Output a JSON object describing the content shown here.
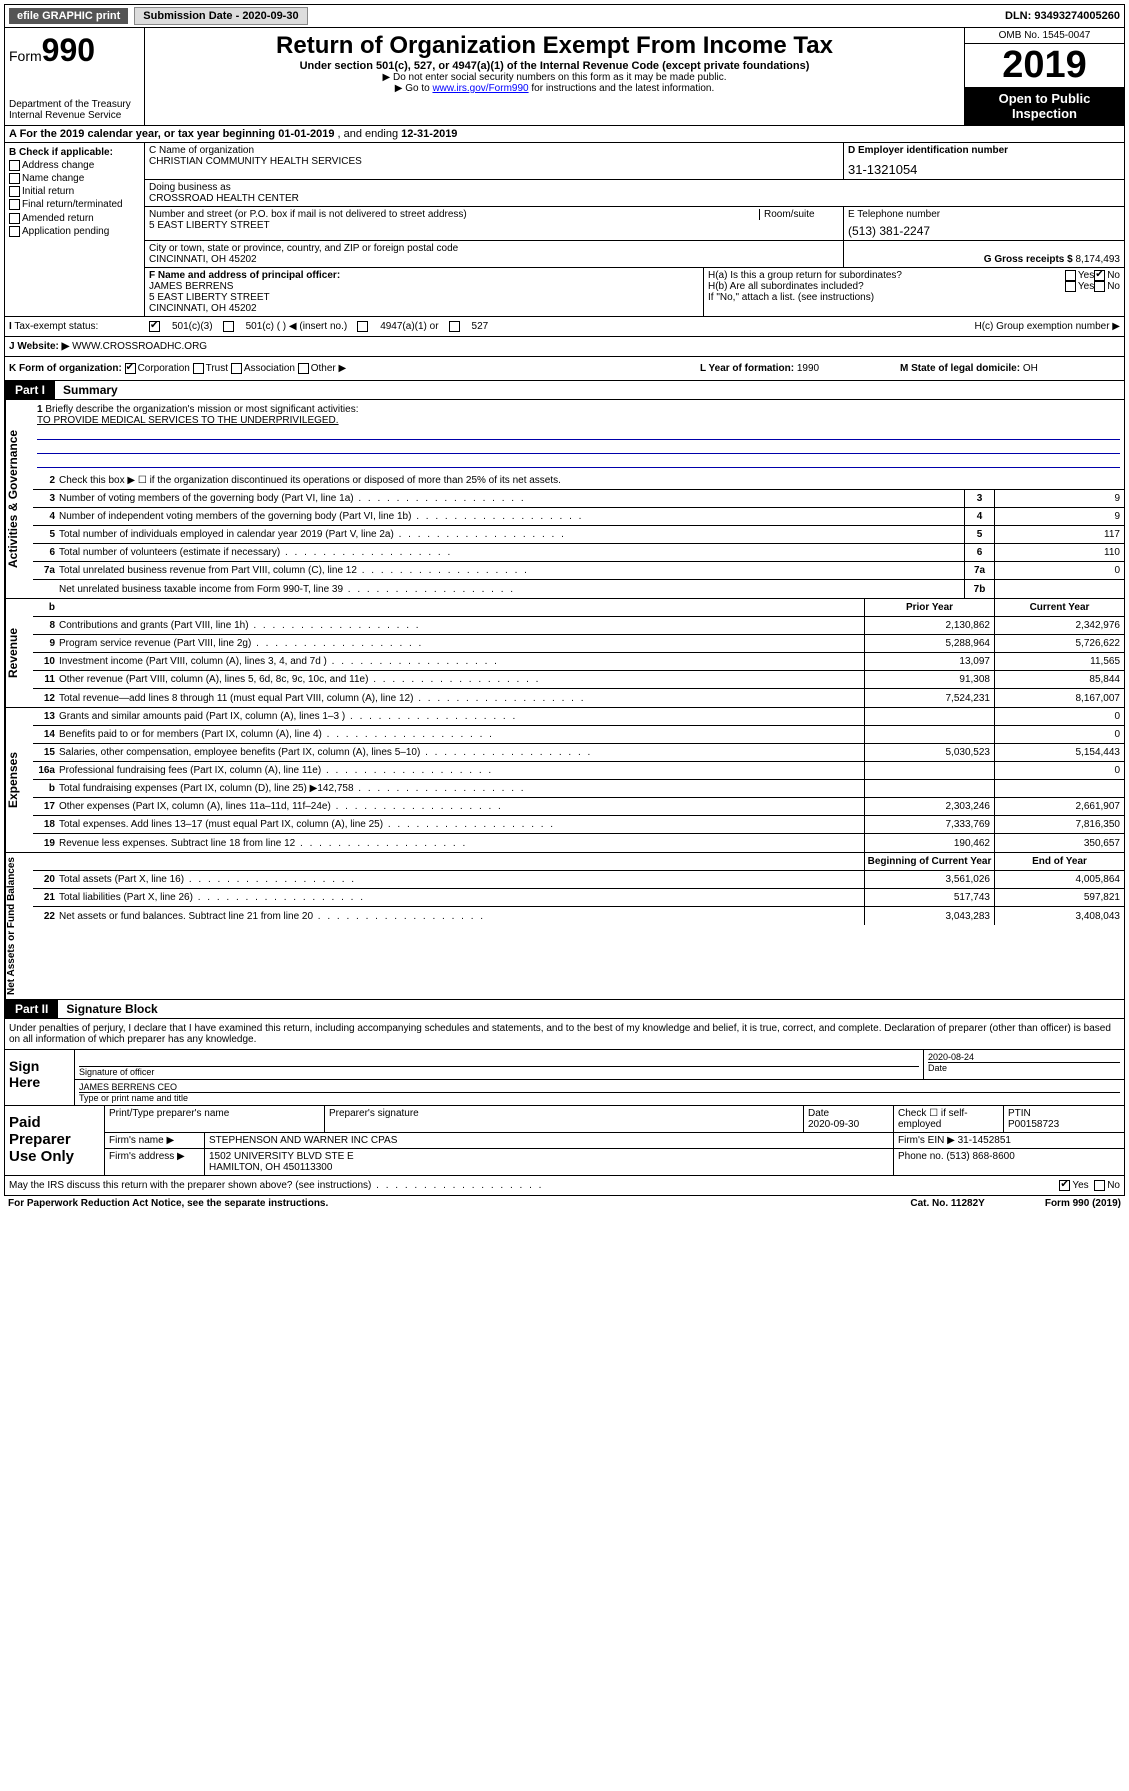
{
  "topbar": {
    "efile": "efile GRAPHIC print",
    "submission": "Submission Date - 2020-09-30",
    "dln": "DLN: 93493274005260"
  },
  "header": {
    "form_prefix": "Form",
    "form_number": "990",
    "dept": "Department of the Treasury\nInternal Revenue Service",
    "title": "Return of Organization Exempt From Income Tax",
    "subtitle": "Under section 501(c), 527, or 4947(a)(1) of the Internal Revenue Code (except private foundations)",
    "note1": "▶ Do not enter social security numbers on this form as it may be made public.",
    "note2_pre": "▶ Go to ",
    "note2_link": "www.irs.gov/Form990",
    "note2_post": " for instructions and the latest information.",
    "omb": "OMB No. 1545-0047",
    "year": "2019",
    "open": "Open to Public Inspection"
  },
  "period": {
    "text_pre": "A For the 2019 calendar year, or tax year beginning ",
    "begin": "01-01-2019",
    "mid": " , and ending ",
    "end": "12-31-2019"
  },
  "boxB": {
    "label": "B Check if applicable:",
    "items": [
      "Address change",
      "Name change",
      "Initial return",
      "Final return/terminated",
      "Amended return",
      "Application pending"
    ]
  },
  "boxC": {
    "name_label": "C Name of organization",
    "name": "CHRISTIAN COMMUNITY HEALTH SERVICES",
    "dba_label": "Doing business as",
    "dba": "CROSSROAD HEALTH CENTER",
    "addr_label": "Number and street (or P.O. box if mail is not delivered to street address)",
    "room_label": "Room/suite",
    "addr": "5 EAST LIBERTY STREET",
    "city_label": "City or town, state or province, country, and ZIP or foreign postal code",
    "city": "CINCINNATI, OH  45202"
  },
  "boxD": {
    "label": "D Employer identification number",
    "ein": "31-1321054"
  },
  "boxE": {
    "label": "E Telephone number",
    "phone": "(513) 381-2247"
  },
  "boxG": {
    "label": "G Gross receipts $ ",
    "amount": "8,174,493"
  },
  "boxF": {
    "label": "F Name and address of principal officer:",
    "name": "JAMES BERRENS",
    "addr": "5 EAST LIBERTY STREET",
    "city": "CINCINNATI, OH  45202"
  },
  "boxH": {
    "ha": "H(a)  Is this a group return for subordinates?",
    "hb": "H(b)  Are all subordinates included?",
    "hb_note": "If \"No,\" attach a list. (see instructions)",
    "hc": "H(c)  Group exemption number ▶",
    "yes": "Yes",
    "no": "No"
  },
  "boxI": {
    "label": "Tax-exempt status:",
    "opt1": "501(c)(3)",
    "opt2": "501(c) (  ) ◀ (insert no.)",
    "opt3": "4947(a)(1) or",
    "opt4": "527"
  },
  "boxJ": {
    "label": "Website: ▶",
    "url": "WWW.CROSSROADHC.ORG"
  },
  "boxK": {
    "label": "K Form of organization:",
    "corp": "Corporation",
    "trust": "Trust",
    "assoc": "Association",
    "other": "Other ▶"
  },
  "boxL": {
    "label": "L Year of formation: ",
    "val": "1990"
  },
  "boxM": {
    "label": "M State of legal domicile: ",
    "val": "OH"
  },
  "part1": {
    "header": "Part I",
    "title": "Summary"
  },
  "summary": {
    "q1": "Briefly describe the organization's mission or most significant activities:",
    "mission": "TO PROVIDE MEDICAL SERVICES TO THE UNDERPRIVILEGED.",
    "q2": "Check this box ▶ ☐  if the organization discontinued its operations or disposed of more than 25% of its net assets.",
    "rows_gov": [
      {
        "n": "3",
        "d": "Number of voting members of the governing body (Part VI, line 1a)",
        "b": "3",
        "v": "9"
      },
      {
        "n": "4",
        "d": "Number of independent voting members of the governing body (Part VI, line 1b)",
        "b": "4",
        "v": "9"
      },
      {
        "n": "5",
        "d": "Total number of individuals employed in calendar year 2019 (Part V, line 2a)",
        "b": "5",
        "v": "117"
      },
      {
        "n": "6",
        "d": "Total number of volunteers (estimate if necessary)",
        "b": "6",
        "v": "110"
      },
      {
        "n": "7a",
        "d": "Total unrelated business revenue from Part VIII, column (C), line 12",
        "b": "7a",
        "v": "0"
      },
      {
        "n": "",
        "d": "Net unrelated business taxable income from Form 990-T, line 39",
        "b": "7b",
        "v": ""
      }
    ],
    "col_prior": "Prior Year",
    "col_current": "Current Year",
    "rows_rev": [
      {
        "n": "8",
        "d": "Contributions and grants (Part VIII, line 1h)",
        "p": "2,130,862",
        "c": "2,342,976"
      },
      {
        "n": "9",
        "d": "Program service revenue (Part VIII, line 2g)",
        "p": "5,288,964",
        "c": "5,726,622"
      },
      {
        "n": "10",
        "d": "Investment income (Part VIII, column (A), lines 3, 4, and 7d )",
        "p": "13,097",
        "c": "11,565"
      },
      {
        "n": "11",
        "d": "Other revenue (Part VIII, column (A), lines 5, 6d, 8c, 9c, 10c, and 11e)",
        "p": "91,308",
        "c": "85,844"
      },
      {
        "n": "12",
        "d": "Total revenue—add lines 8 through 11 (must equal Part VIII, column (A), line 12)",
        "p": "7,524,231",
        "c": "8,167,007"
      }
    ],
    "rows_exp": [
      {
        "n": "13",
        "d": "Grants and similar amounts paid (Part IX, column (A), lines 1–3 )",
        "p": "",
        "c": "0"
      },
      {
        "n": "14",
        "d": "Benefits paid to or for members (Part IX, column (A), line 4)",
        "p": "",
        "c": "0"
      },
      {
        "n": "15",
        "d": "Salaries, other compensation, employee benefits (Part IX, column (A), lines 5–10)",
        "p": "5,030,523",
        "c": "5,154,443"
      },
      {
        "n": "16a",
        "d": "Professional fundraising fees (Part IX, column (A), line 11e)",
        "p": "",
        "c": "0"
      },
      {
        "n": "b",
        "d": "Total fundraising expenses (Part IX, column (D), line 25) ▶142,758",
        "p": "",
        "c": ""
      },
      {
        "n": "17",
        "d": "Other expenses (Part IX, column (A), lines 11a–11d, 11f–24e)",
        "p": "2,303,246",
        "c": "2,661,907"
      },
      {
        "n": "18",
        "d": "Total expenses. Add lines 13–17 (must equal Part IX, column (A), line 25)",
        "p": "7,333,769",
        "c": "7,816,350"
      },
      {
        "n": "19",
        "d": "Revenue less expenses. Subtract line 18 from line 12",
        "p": "190,462",
        "c": "350,657"
      }
    ],
    "col_begin": "Beginning of Current Year",
    "col_end": "End of Year",
    "rows_net": [
      {
        "n": "20",
        "d": "Total assets (Part X, line 16)",
        "p": "3,561,026",
        "c": "4,005,864"
      },
      {
        "n": "21",
        "d": "Total liabilities (Part X, line 26)",
        "p": "517,743",
        "c": "597,821"
      },
      {
        "n": "22",
        "d": "Net assets or fund balances. Subtract line 21 from line 20",
        "p": "3,043,283",
        "c": "3,408,043"
      }
    ],
    "side_gov": "Activities & Governance",
    "side_rev": "Revenue",
    "side_exp": "Expenses",
    "side_net": "Net Assets or Fund Balances"
  },
  "part2": {
    "header": "Part II",
    "title": "Signature Block"
  },
  "sig": {
    "text": "Under penalties of perjury, I declare that I have examined this return, including accompanying schedules and statements, and to the best of my knowledge and belief, it is true, correct, and complete. Declaration of preparer (other than officer) is based on all information of which preparer has any knowledge.",
    "sign_here": "Sign Here",
    "sig_officer": "Signature of officer",
    "date": "2020-08-24",
    "date_label": "Date",
    "officer": "JAMES BERRENS CEO",
    "type_label": "Type or print name and title"
  },
  "paid": {
    "label": "Paid Preparer Use Only",
    "r1": {
      "c1": "Print/Type preparer's name",
      "c2": "Preparer's signature",
      "c3l": "Date",
      "c3": "2020-09-30",
      "c4": "Check ☐ if self-employed",
      "c5l": "PTIN",
      "c5": "P00158723"
    },
    "r2": {
      "c1": "Firm's name    ▶",
      "c2": "STEPHENSON AND WARNER INC CPAS",
      "c3": "Firm's EIN ▶ 31-1452851"
    },
    "r3": {
      "c1": "Firm's address ▶",
      "c2": "1502 UNIVERSITY BLVD STE E",
      "c3": "Phone no. (513) 868-8600"
    },
    "r3b": "HAMILTON, OH  450113300"
  },
  "footer": {
    "q": "May the IRS discuss this return with the preparer shown above? (see instructions)",
    "yes": "Yes",
    "no": "No",
    "paperwork": "For Paperwork Reduction Act Notice, see the separate instructions.",
    "cat": "Cat. No. 11282Y",
    "form": "Form 990 (2019)"
  }
}
